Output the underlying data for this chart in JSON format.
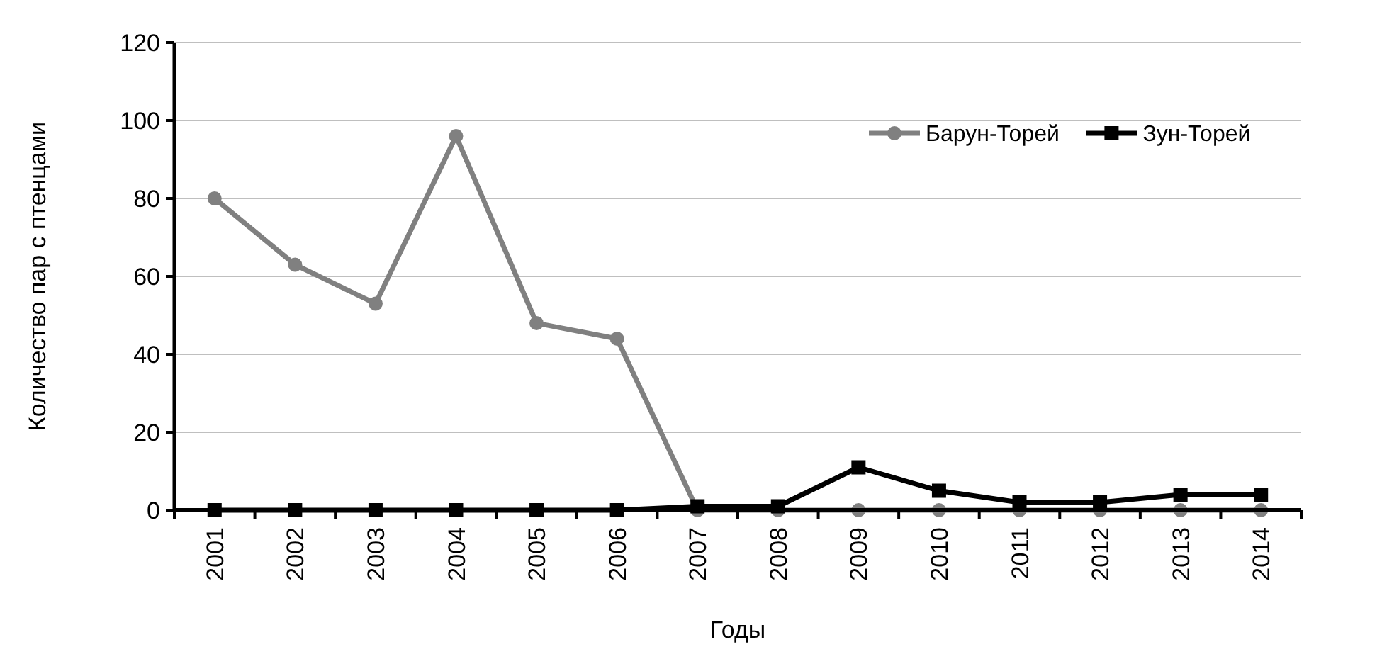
{
  "chart_data": {
    "type": "line",
    "xlabel": "Годы",
    "ylabel": "Количество пар с птенцами",
    "categories": [
      "2001",
      "2002",
      "2003",
      "2004",
      "2005",
      "2006",
      "2007",
      "2008",
      "2009",
      "2010",
      "2011",
      "2012",
      "2013",
      "2014"
    ],
    "series": [
      {
        "name": "Барун-Торей",
        "color": "#808080",
        "marker": "circle",
        "values": [
          80,
          63,
          53,
          96,
          48,
          44,
          0,
          0,
          0,
          0,
          0,
          0,
          0,
          0
        ]
      },
      {
        "name": "Зун-Торей",
        "color": "#000000",
        "marker": "square",
        "values": [
          0,
          0,
          0,
          0,
          0,
          0,
          1,
          1,
          11,
          5,
          2,
          2,
          4,
          4
        ]
      }
    ],
    "ylim": [
      0,
      120
    ],
    "yticks": [
      0,
      20,
      40,
      60,
      80,
      100,
      120
    ],
    "grid": "y",
    "legend": "right"
  }
}
